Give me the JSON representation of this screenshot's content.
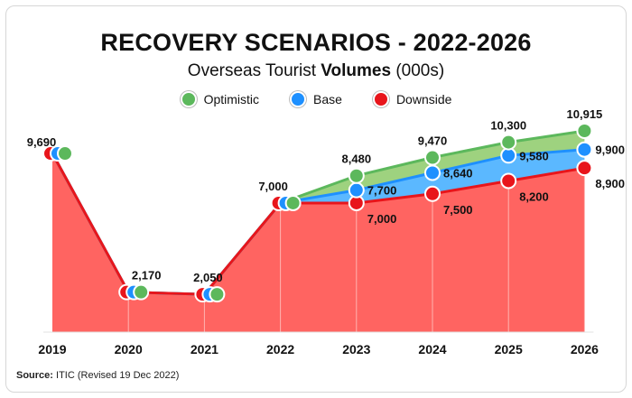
{
  "header": {
    "title": "RECOVERY SCENARIOS - 2022-2026",
    "subtitle_normal": "Overseas Tourist ",
    "subtitle_bold": "Volumes",
    "subtitle_tail": " (000s)"
  },
  "legend": [
    {
      "label": "Optimistic",
      "color": "#5cb85c"
    },
    {
      "label": "Base",
      "color": "#1e90ff"
    },
    {
      "label": "Downside",
      "color": "#e8151b"
    }
  ],
  "source": {
    "label": "Source:",
    "text": " ITIC (Revised 19 Dec 2022)"
  },
  "chart_data": {
    "type": "area",
    "categories": [
      "2019",
      "2020",
      "2021",
      "2022",
      "2023",
      "2024",
      "2025",
      "2026"
    ],
    "series": [
      {
        "name": "Optimistic",
        "color": "#5cb85c",
        "fill": "#9ed27f",
        "values": [
          9690,
          2170,
          2050,
          7000,
          8480,
          9470,
          10300,
          10915
        ]
      },
      {
        "name": "Base",
        "color": "#1e90ff",
        "fill": "#5bb8ff",
        "values": [
          9690,
          2170,
          2050,
          7000,
          7700,
          8640,
          9580,
          9900
        ]
      },
      {
        "name": "Downside",
        "color": "#e8151b",
        "fill": "#ff6461",
        "values": [
          9690,
          2170,
          2050,
          7000,
          7000,
          7500,
          8200,
          8900
        ]
      }
    ],
    "labels": {
      "shared": [
        "9,690",
        "2,170",
        "2,050",
        "7,000"
      ],
      "optimistic": [
        "8,480",
        "9,470",
        "10,300",
        "10,915"
      ],
      "base": [
        "7,700",
        "8,640",
        "9,580",
        "9,900"
      ],
      "downside": [
        "7,000",
        "7,500",
        "8,200",
        "8,900"
      ]
    },
    "ylim": [
      0,
      11000
    ],
    "grid": false,
    "legend_position": "top"
  }
}
